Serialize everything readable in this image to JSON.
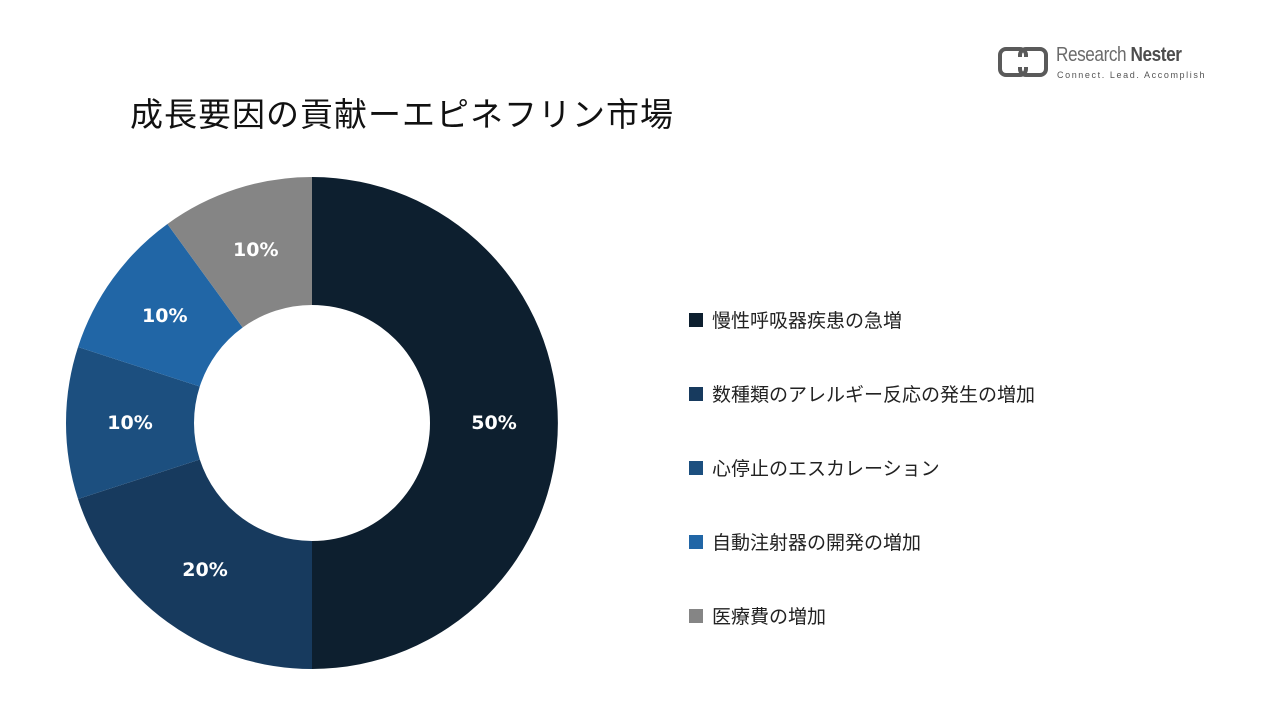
{
  "title": "成長要因の貢献ーエピネフリン市場",
  "logo": {
    "name_light": "Research",
    "name_bold": "Nester",
    "tagline": "Connect. Lead. Accomplish",
    "color": "#4d4d4d"
  },
  "chart_data": {
    "type": "pie",
    "donut": true,
    "categories": [
      "慢性呼吸器疾患の急増",
      "数種類のアレルギー反応の発生の増加",
      "心停止のエスカレーション",
      "自動注射器の開発の増加",
      "医療費の増加"
    ],
    "values": [
      50,
      20,
      10,
      10,
      10
    ],
    "labels": [
      "50%",
      "20%",
      "10%",
      "10%",
      "10%"
    ],
    "colors": [
      "#0d1f2f",
      "#173a5e",
      "#1c4f7f",
      "#2166a6",
      "#858585"
    ],
    "legend_position": "right"
  }
}
